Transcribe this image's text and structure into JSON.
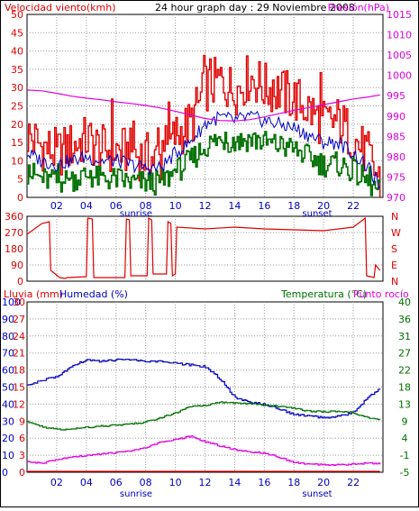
{
  "colors": {
    "frame": "#000000",
    "wind": "#e00000",
    "wind_avg": "#0000c0",
    "wind_gust": "#007000",
    "pressure": "#e000e0",
    "direction": "#e00000",
    "rain": "#e00000",
    "humidity": "#0000c0",
    "temperature": "#007000",
    "dewpoint": "#e000e0",
    "grid": "#9a9a9a"
  },
  "chart_data": [
    {
      "type": "line",
      "title": "24 hour graph day : 29 Noviembre 2008",
      "ylabel_left": "Velocidad viento(kmh)",
      "ylabel_right": "Presión(hPa)",
      "x_ticks": [
        "02",
        "04",
        "06",
        "08",
        "10",
        "12",
        "14",
        "16",
        "18",
        "20",
        "22"
      ],
      "x_labels": [
        "sunrise",
        "sunset"
      ],
      "ylim_left": [
        0,
        50
      ],
      "y_ticks_left": [
        "0",
        "5",
        "10",
        "15",
        "20",
        "25",
        "30",
        "35",
        "40",
        "45",
        "50"
      ],
      "ylim_right": [
        970,
        1015
      ],
      "y_ticks_right": [
        "970",
        "975",
        "980",
        "985",
        "990",
        "995",
        "1000",
        "1005",
        "1010",
        "1015"
      ],
      "grid": true,
      "hours": [
        0,
        1,
        2,
        3,
        4,
        5,
        6,
        7,
        8,
        9,
        10,
        11,
        12,
        13,
        14,
        15,
        16,
        17,
        18,
        19,
        20,
        21,
        22,
        23,
        23.8
      ],
      "series": [
        {
          "key": "wind",
          "values": [
            17,
            14,
            12,
            14,
            16,
            13,
            13,
            12,
            11,
            10,
            17,
            20,
            30,
            32,
            29,
            33,
            30,
            29,
            27,
            24,
            20,
            21,
            16,
            11,
            4
          ]
        },
        {
          "key": "wind_avg",
          "values": [
            12,
            10,
            9,
            10,
            11,
            10,
            10,
            9,
            8,
            8,
            12,
            15,
            20,
            22,
            21,
            22,
            21,
            20,
            19,
            17,
            15,
            15,
            12,
            8,
            3
          ]
        },
        {
          "key": "wind_gust",
          "values": [
            7,
            5,
            4,
            5,
            6,
            5,
            5,
            4,
            4,
            4,
            7,
            10,
            14,
            16,
            15,
            16,
            15,
            14,
            13,
            11,
            9,
            9,
            7,
            4,
            1
          ]
        },
        {
          "key": "pressure",
          "values": [
            996.4,
            996.2,
            995.6,
            994.9,
            994.4,
            994.0,
            993.5,
            993.1,
            992.6,
            992.0,
            991.2,
            990.3,
            989.4,
            988.9,
            988.8,
            989.1,
            989.8,
            990.6,
            991.4,
            992.1,
            992.8,
            993.5,
            994.2,
            994.7,
            995.2
          ]
        }
      ]
    },
    {
      "type": "line",
      "ylim": [
        0,
        360
      ],
      "y_ticks_left": [
        "0",
        "90",
        "180",
        "270",
        "360"
      ],
      "y_ticks_right": [
        "N",
        "E",
        "S",
        "W",
        "N"
      ],
      "grid": true,
      "hours": [
        0,
        1,
        1.5,
        1.6,
        2.2,
        2.6,
        2.7,
        4.0,
        4.1,
        4.4,
        4.5,
        6.6,
        6.7,
        6.9,
        7.0,
        8.1,
        8.2,
        8.4,
        8.5,
        9.4,
        9.5,
        9.7,
        9.8,
        10.0,
        10.1,
        12.0,
        14.0,
        16.0,
        18.0,
        20.0,
        22.0,
        22.8,
        22.9,
        23.4,
        23.5,
        23.8
      ],
      "series": [
        {
          "key": "direction",
          "values": [
            260,
            320,
            330,
            60,
            20,
            15,
            20,
            25,
            350,
            345,
            20,
            20,
            345,
            340,
            30,
            30,
            350,
            340,
            40,
            40,
            330,
            320,
            30,
            40,
            300,
            290,
            300,
            290,
            285,
            280,
            300,
            350,
            30,
            20,
            90,
            60
          ]
        }
      ]
    },
    {
      "type": "line",
      "ylabel_left": "Lluvia (mm)",
      "ylabel_left2": "Humedad (%)",
      "ylabel_right": "Temperatura (°C)",
      "ylabel_right2": "Punto rocío",
      "x_ticks": [
        "02",
        "04",
        "06",
        "08",
        "10",
        "12",
        "14",
        "16",
        "18",
        "20",
        "22"
      ],
      "x_labels": [
        "sunrise",
        "sunset"
      ],
      "rain_ticks": [
        "0",
        "3",
        "6",
        "9",
        "12",
        "15",
        "18",
        "21",
        "24",
        "27",
        "30"
      ],
      "humidity_ticks": [
        "0",
        "10",
        "20",
        "30",
        "40",
        "50",
        "60",
        "70",
        "80",
        "90",
        "100"
      ],
      "temp_ticks": [
        "-5",
        "-1",
        "4",
        "9",
        "13",
        "18",
        "22",
        "27",
        "31",
        "36",
        "40"
      ],
      "ylim_humidity": [
        0,
        100
      ],
      "ylim_temp": [
        -5,
        40
      ],
      "grid": true,
      "hours": [
        0,
        1,
        2,
        3,
        4,
        5,
        6,
        7,
        8,
        9,
        10,
        11,
        12,
        13,
        14,
        15,
        16,
        17,
        18,
        19,
        20,
        21,
        22,
        23,
        23.8
      ],
      "series": [
        {
          "key": "rain",
          "values": [
            0,
            0,
            0,
            0,
            0,
            0,
            0,
            0,
            0,
            0,
            0,
            0,
            0,
            0,
            0,
            0,
            0,
            0,
            0,
            0,
            0,
            0,
            0,
            0,
            0
          ]
        },
        {
          "key": "humidity",
          "values": [
            51,
            54,
            56,
            62,
            66,
            65,
            66,
            66,
            65,
            65,
            64,
            63,
            62,
            55,
            44,
            41,
            40,
            37,
            34,
            33,
            32,
            33,
            35,
            44,
            49
          ]
        },
        {
          "key": "temperature",
          "values": [
            8.5,
            7.0,
            6.3,
            6.4,
            6.8,
            7.2,
            7.4,
            7.7,
            8.3,
            9.4,
            10.6,
            12.4,
            12.6,
            13.5,
            13.3,
            13.1,
            12.7,
            12.4,
            11.9,
            11.1,
            11.0,
            11.1,
            10.7,
            9.4,
            8.9
          ]
        },
        {
          "key": "dewpoint",
          "values": [
            -2.2,
            -2.6,
            -1.7,
            -1.0,
            -0.6,
            -0.2,
            0.2,
            0.6,
            1.5,
            2.9,
            3.6,
            4.5,
            3.1,
            2.0,
            1.0,
            0.3,
            0.1,
            -1.1,
            -2.4,
            -2.9,
            -3.0,
            -3.0,
            -2.9,
            -2.6,
            -2.8
          ]
        }
      ]
    }
  ]
}
